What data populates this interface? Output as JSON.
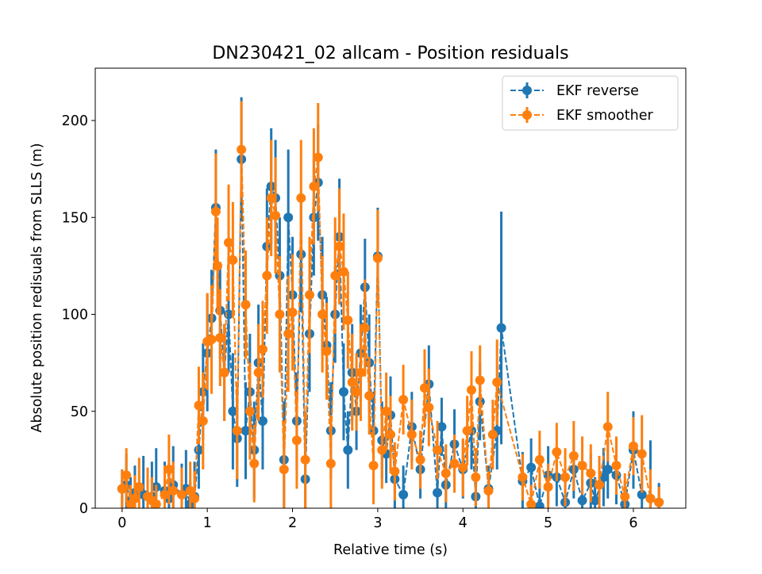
{
  "chart_data": {
    "type": "scatter",
    "title": "DN230421_02 allcam - Position residuals",
    "xlabel": "Relative time (s)",
    "ylabel": "Absolute position redisuals from SLLS (m)",
    "xlim": [
      -0.315,
      6.615
    ],
    "ylim": [
      0,
      227
    ],
    "xticks": [
      0,
      1,
      2,
      3,
      4,
      5,
      6
    ],
    "yticks": [
      0,
      50,
      100,
      150,
      200
    ],
    "grid": false,
    "legend_position": "top-right",
    "series": [
      {
        "name": "EKF reverse",
        "color": "#1f77b4",
        "linestyle": "dashed",
        "marker": "circle",
        "points": [
          [
            0.0,
            10,
            10
          ],
          [
            0.05,
            12,
            16
          ],
          [
            0.1,
            4,
            12
          ],
          [
            0.15,
            8,
            14
          ],
          [
            0.25,
            7,
            20
          ],
          [
            0.35,
            6,
            18
          ],
          [
            0.4,
            11,
            20
          ],
          [
            0.5,
            9,
            15
          ],
          [
            0.55,
            5,
            18
          ],
          [
            0.6,
            12,
            20
          ],
          [
            0.7,
            7,
            16
          ],
          [
            0.75,
            10,
            20
          ],
          [
            0.8,
            2,
            12
          ],
          [
            0.85,
            6,
            18
          ],
          [
            0.9,
            30,
            20
          ],
          [
            0.95,
            60,
            25
          ],
          [
            1.0,
            80,
            30
          ],
          [
            1.05,
            98,
            25
          ],
          [
            1.1,
            155,
            30
          ],
          [
            1.15,
            102,
            25
          ],
          [
            1.2,
            70,
            25
          ],
          [
            1.25,
            100,
            30
          ],
          [
            1.3,
            50,
            30
          ],
          [
            1.35,
            36,
            25
          ],
          [
            1.4,
            180,
            32
          ],
          [
            1.45,
            40,
            25
          ],
          [
            1.5,
            60,
            30
          ],
          [
            1.55,
            30,
            25
          ],
          [
            1.6,
            75,
            30
          ],
          [
            1.65,
            45,
            25
          ],
          [
            1.7,
            135,
            30
          ],
          [
            1.75,
            166,
            30
          ],
          [
            1.8,
            160,
            30
          ],
          [
            1.85,
            120,
            30
          ],
          [
            1.9,
            25,
            30
          ],
          [
            1.95,
            150,
            35
          ],
          [
            2.0,
            110,
            30
          ],
          [
            2.05,
            45,
            25
          ],
          [
            2.1,
            131,
            30
          ],
          [
            2.15,
            15,
            25
          ],
          [
            2.2,
            90,
            30
          ],
          [
            2.25,
            150,
            30
          ],
          [
            2.3,
            168,
            30
          ],
          [
            2.35,
            110,
            30
          ],
          [
            2.4,
            84,
            25
          ],
          [
            2.45,
            40,
            25
          ],
          [
            2.5,
            100,
            25
          ],
          [
            2.55,
            140,
            30
          ],
          [
            2.6,
            60,
            25
          ],
          [
            2.65,
            30,
            20
          ],
          [
            2.7,
            70,
            25
          ],
          [
            2.75,
            50,
            20
          ],
          [
            2.8,
            80,
            25
          ],
          [
            2.85,
            114,
            25
          ],
          [
            2.9,
            75,
            25
          ],
          [
            2.95,
            40,
            20
          ],
          [
            3.0,
            130,
            25
          ],
          [
            3.05,
            35,
            20
          ],
          [
            3.1,
            28,
            15
          ],
          [
            3.15,
            48,
            20
          ],
          [
            3.2,
            15,
            15
          ],
          [
            3.3,
            7,
            15
          ],
          [
            3.4,
            42,
            18
          ],
          [
            3.5,
            20,
            15
          ],
          [
            3.6,
            64,
            20
          ],
          [
            3.7,
            8,
            12
          ],
          [
            3.75,
            42,
            15
          ],
          [
            3.8,
            12,
            15
          ],
          [
            3.9,
            33,
            18
          ],
          [
            4.0,
            20,
            15
          ],
          [
            4.1,
            40,
            20
          ],
          [
            4.15,
            6,
            15
          ],
          [
            4.2,
            55,
            20
          ],
          [
            4.3,
            10,
            12
          ],
          [
            4.4,
            40,
            20
          ],
          [
            4.45,
            93,
            60
          ],
          [
            4.7,
            14,
            15
          ],
          [
            4.8,
            21,
            15
          ],
          [
            4.9,
            1,
            12
          ],
          [
            5.0,
            17,
            15
          ],
          [
            5.1,
            16,
            15
          ],
          [
            5.2,
            3,
            12
          ],
          [
            5.3,
            20,
            15
          ],
          [
            5.4,
            4,
            12
          ],
          [
            5.5,
            13,
            15
          ],
          [
            5.55,
            4,
            12
          ],
          [
            5.65,
            16,
            15
          ],
          [
            5.7,
            20,
            15
          ],
          [
            5.8,
            17,
            15
          ],
          [
            5.9,
            2,
            12
          ],
          [
            6.0,
            30,
            20
          ],
          [
            6.1,
            7,
            20
          ],
          [
            6.2,
            5,
            30
          ],
          [
            6.3,
            3,
            10
          ]
        ]
      },
      {
        "name": "EKF smoother",
        "color": "#ff7f0e",
        "linestyle": "dashed",
        "marker": "circle",
        "points": [
          [
            0.0,
            10,
            10
          ],
          [
            0.05,
            17,
            14
          ],
          [
            0.1,
            2,
            10
          ],
          [
            0.15,
            5,
            12
          ],
          [
            0.2,
            11,
            15
          ],
          [
            0.3,
            6,
            15
          ],
          [
            0.35,
            4,
            12
          ],
          [
            0.4,
            2,
            10
          ],
          [
            0.5,
            7,
            15
          ],
          [
            0.55,
            20,
            18
          ],
          [
            0.6,
            9,
            15
          ],
          [
            0.7,
            7,
            14
          ],
          [
            0.8,
            9,
            15
          ],
          [
            0.85,
            5,
            14
          ],
          [
            0.9,
            53,
            20
          ],
          [
            0.95,
            45,
            25
          ],
          [
            1.0,
            86,
            25
          ],
          [
            1.05,
            87,
            28
          ],
          [
            1.1,
            153,
            30
          ],
          [
            1.12,
            125,
            25
          ],
          [
            1.15,
            88,
            25
          ],
          [
            1.2,
            70,
            25
          ],
          [
            1.25,
            137,
            30
          ],
          [
            1.3,
            128,
            30
          ],
          [
            1.35,
            40,
            25
          ],
          [
            1.4,
            185,
            25
          ],
          [
            1.45,
            105,
            28
          ],
          [
            1.5,
            50,
            25
          ],
          [
            1.55,
            23,
            20
          ],
          [
            1.6,
            70,
            25
          ],
          [
            1.65,
            82,
            25
          ],
          [
            1.7,
            120,
            30
          ],
          [
            1.75,
            160,
            30
          ],
          [
            1.8,
            151,
            30
          ],
          [
            1.85,
            100,
            30
          ],
          [
            1.9,
            20,
            25
          ],
          [
            1.95,
            90,
            30
          ],
          [
            2.0,
            101,
            30
          ],
          [
            2.05,
            35,
            25
          ],
          [
            2.1,
            160,
            30
          ],
          [
            2.15,
            25,
            25
          ],
          [
            2.2,
            110,
            30
          ],
          [
            2.25,
            166,
            30
          ],
          [
            2.3,
            181,
            28
          ],
          [
            2.35,
            100,
            30
          ],
          [
            2.4,
            81,
            25
          ],
          [
            2.45,
            23,
            25
          ],
          [
            2.5,
            120,
            30
          ],
          [
            2.55,
            135,
            30
          ],
          [
            2.6,
            122,
            30
          ],
          [
            2.65,
            97,
            25
          ],
          [
            2.7,
            65,
            25
          ],
          [
            2.75,
            60,
            20
          ],
          [
            2.8,
            70,
            25
          ],
          [
            2.85,
            93,
            25
          ],
          [
            2.9,
            58,
            20
          ],
          [
            2.95,
            22,
            20
          ],
          [
            3.0,
            129,
            25
          ],
          [
            3.05,
            30,
            20
          ],
          [
            3.1,
            50,
            20
          ],
          [
            3.15,
            38,
            20
          ],
          [
            3.2,
            19,
            15
          ],
          [
            3.3,
            56,
            18
          ],
          [
            3.4,
            38,
            18
          ],
          [
            3.5,
            25,
            15
          ],
          [
            3.55,
            62,
            20
          ],
          [
            3.6,
            52,
            20
          ],
          [
            3.7,
            30,
            15
          ],
          [
            3.8,
            18,
            15
          ],
          [
            3.9,
            23,
            15
          ],
          [
            4.0,
            21,
            15
          ],
          [
            4.05,
            40,
            18
          ],
          [
            4.1,
            61,
            20
          ],
          [
            4.15,
            16,
            15
          ],
          [
            4.2,
            66,
            18
          ],
          [
            4.3,
            9,
            10
          ],
          [
            4.35,
            38,
            18
          ],
          [
            4.4,
            65,
            22
          ],
          [
            4.7,
            16,
            12
          ],
          [
            4.8,
            2,
            10
          ],
          [
            4.9,
            25,
            15
          ],
          [
            5.0,
            11,
            12
          ],
          [
            5.1,
            29,
            15
          ],
          [
            5.2,
            16,
            15
          ],
          [
            5.3,
            27,
            18
          ],
          [
            5.4,
            22,
            15
          ],
          [
            5.5,
            18,
            15
          ],
          [
            5.6,
            12,
            15
          ],
          [
            5.7,
            42,
            18
          ],
          [
            5.8,
            22,
            15
          ],
          [
            5.9,
            6,
            12
          ],
          [
            6.0,
            32,
            15
          ],
          [
            6.1,
            28,
            20
          ],
          [
            6.2,
            5,
            15
          ],
          [
            6.3,
            3,
            8
          ]
        ]
      }
    ]
  }
}
